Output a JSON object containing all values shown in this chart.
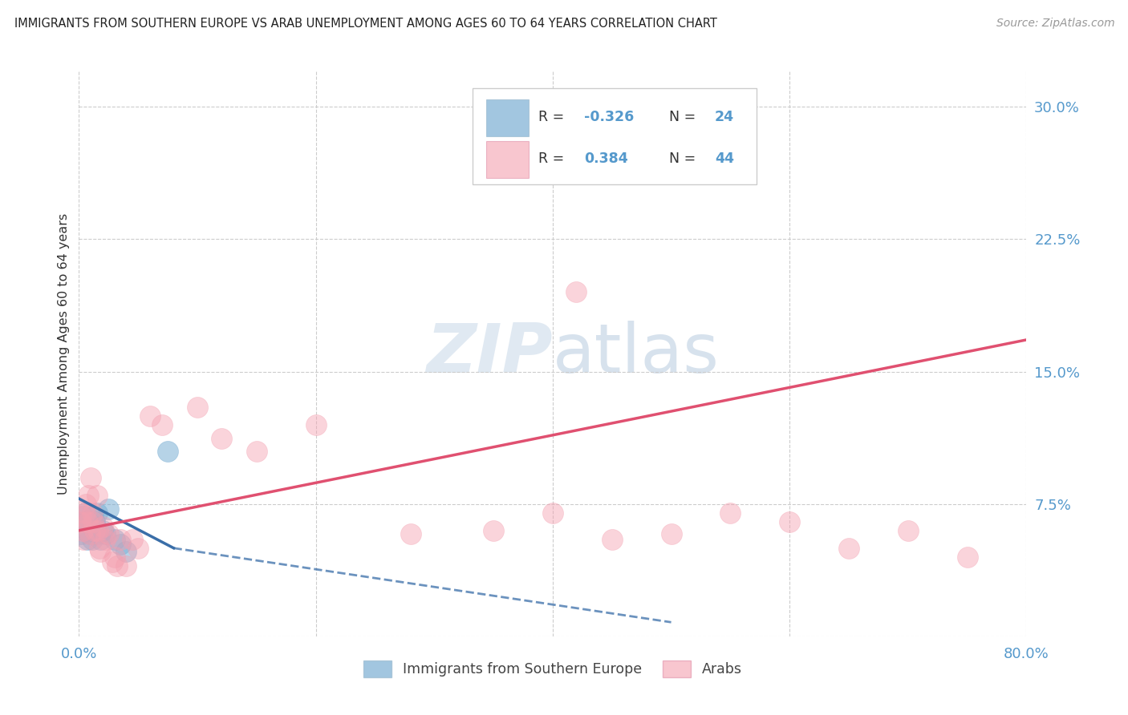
{
  "title": "IMMIGRANTS FROM SOUTHERN EUROPE VS ARAB UNEMPLOYMENT AMONG AGES 60 TO 64 YEARS CORRELATION CHART",
  "source": "Source: ZipAtlas.com",
  "ylabel": "Unemployment Among Ages 60 to 64 years",
  "legend_label1": "Immigrants from Southern Europe",
  "legend_label2": "Arabs",
  "R1": -0.326,
  "N1": 24,
  "R2": 0.384,
  "N2": 44,
  "color_blue": "#7BAFD4",
  "color_pink": "#F4A0B0",
  "color_blue_line": "#3A6EA8",
  "color_pink_line": "#E05070",
  "color_axis_labels": "#5599CC",
  "xlim": [
    0.0,
    0.8
  ],
  "ylim": [
    0.0,
    0.32
  ],
  "blue_x": [
    0.001,
    0.002,
    0.003,
    0.004,
    0.005,
    0.006,
    0.007,
    0.008,
    0.009,
    0.01,
    0.011,
    0.012,
    0.013,
    0.014,
    0.015,
    0.016,
    0.018,
    0.02,
    0.022,
    0.025,
    0.03,
    0.035,
    0.04,
    0.075
  ],
  "blue_y": [
    0.062,
    0.058,
    0.068,
    0.065,
    0.07,
    0.06,
    0.055,
    0.065,
    0.06,
    0.058,
    0.055,
    0.068,
    0.065,
    0.062,
    0.07,
    0.058,
    0.055,
    0.06,
    0.058,
    0.072,
    0.055,
    0.052,
    0.048,
    0.105
  ],
  "pink_x": [
    0.001,
    0.002,
    0.003,
    0.004,
    0.005,
    0.006,
    0.007,
    0.008,
    0.009,
    0.01,
    0.011,
    0.012,
    0.013,
    0.015,
    0.016,
    0.017,
    0.018,
    0.02,
    0.022,
    0.025,
    0.028,
    0.03,
    0.032,
    0.035,
    0.04,
    0.045,
    0.05,
    0.06,
    0.07,
    0.1,
    0.12,
    0.15,
    0.2,
    0.28,
    0.35,
    0.4,
    0.42,
    0.45,
    0.5,
    0.55,
    0.6,
    0.65,
    0.7,
    0.75
  ],
  "pink_y": [
    0.065,
    0.068,
    0.06,
    0.055,
    0.07,
    0.075,
    0.065,
    0.08,
    0.058,
    0.09,
    0.07,
    0.065,
    0.06,
    0.08,
    0.06,
    0.05,
    0.048,
    0.062,
    0.055,
    0.058,
    0.042,
    0.045,
    0.04,
    0.055,
    0.04,
    0.055,
    0.05,
    0.125,
    0.12,
    0.13,
    0.112,
    0.105,
    0.12,
    0.058,
    0.06,
    0.07,
    0.195,
    0.055,
    0.058,
    0.07,
    0.065,
    0.05,
    0.06,
    0.045
  ],
  "blue_line_x0": 0.0,
  "blue_line_y0": 0.078,
  "blue_line_x1": 0.08,
  "blue_line_y1": 0.05,
  "blue_line_dash_x1": 0.5,
  "blue_line_dash_y1": 0.008,
  "pink_line_x0": 0.0,
  "pink_line_y0": 0.06,
  "pink_line_x1": 0.8,
  "pink_line_y1": 0.168,
  "background_color": "#FFFFFF",
  "grid_color": "#CCCCCC"
}
